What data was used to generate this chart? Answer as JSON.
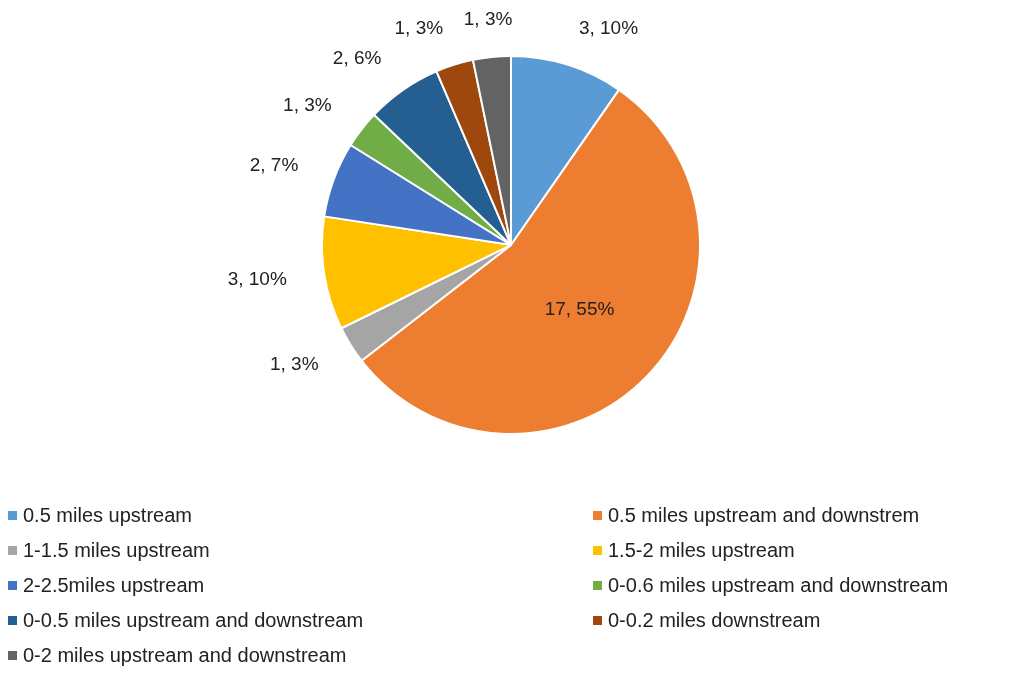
{
  "chart_data": {
    "type": "pie",
    "categories": [
      "0.5 miles upstream",
      "0.5 miles upstream and downstrem",
      "1-1.5 miles upstream",
      "1.5-2 miles upstream",
      "2-2.5miles upstream",
      "0-0.6 miles upstream and downstream",
      "0-0.5 miles upstream and downstream",
      "0-0.2 miles downstream",
      "0-2 miles upstream and downstream"
    ],
    "values": [
      3,
      17,
      1,
      3,
      2,
      1,
      2,
      1,
      1
    ],
    "colors": [
      "#5b9bd5",
      "#ed7d31",
      "#a5a5a5",
      "#ffc000",
      "#4472c4",
      "#70ad47",
      "#255e91",
      "#9e480e",
      "#636363"
    ],
    "value_labels": [
      "3, 10%",
      "17, 55%",
      "1, 3%",
      "3, 10%",
      "2, 7%",
      "1, 3%",
      "2, 6%",
      "1, 3%",
      "1, 3%"
    ],
    "legend": "bottom"
  }
}
